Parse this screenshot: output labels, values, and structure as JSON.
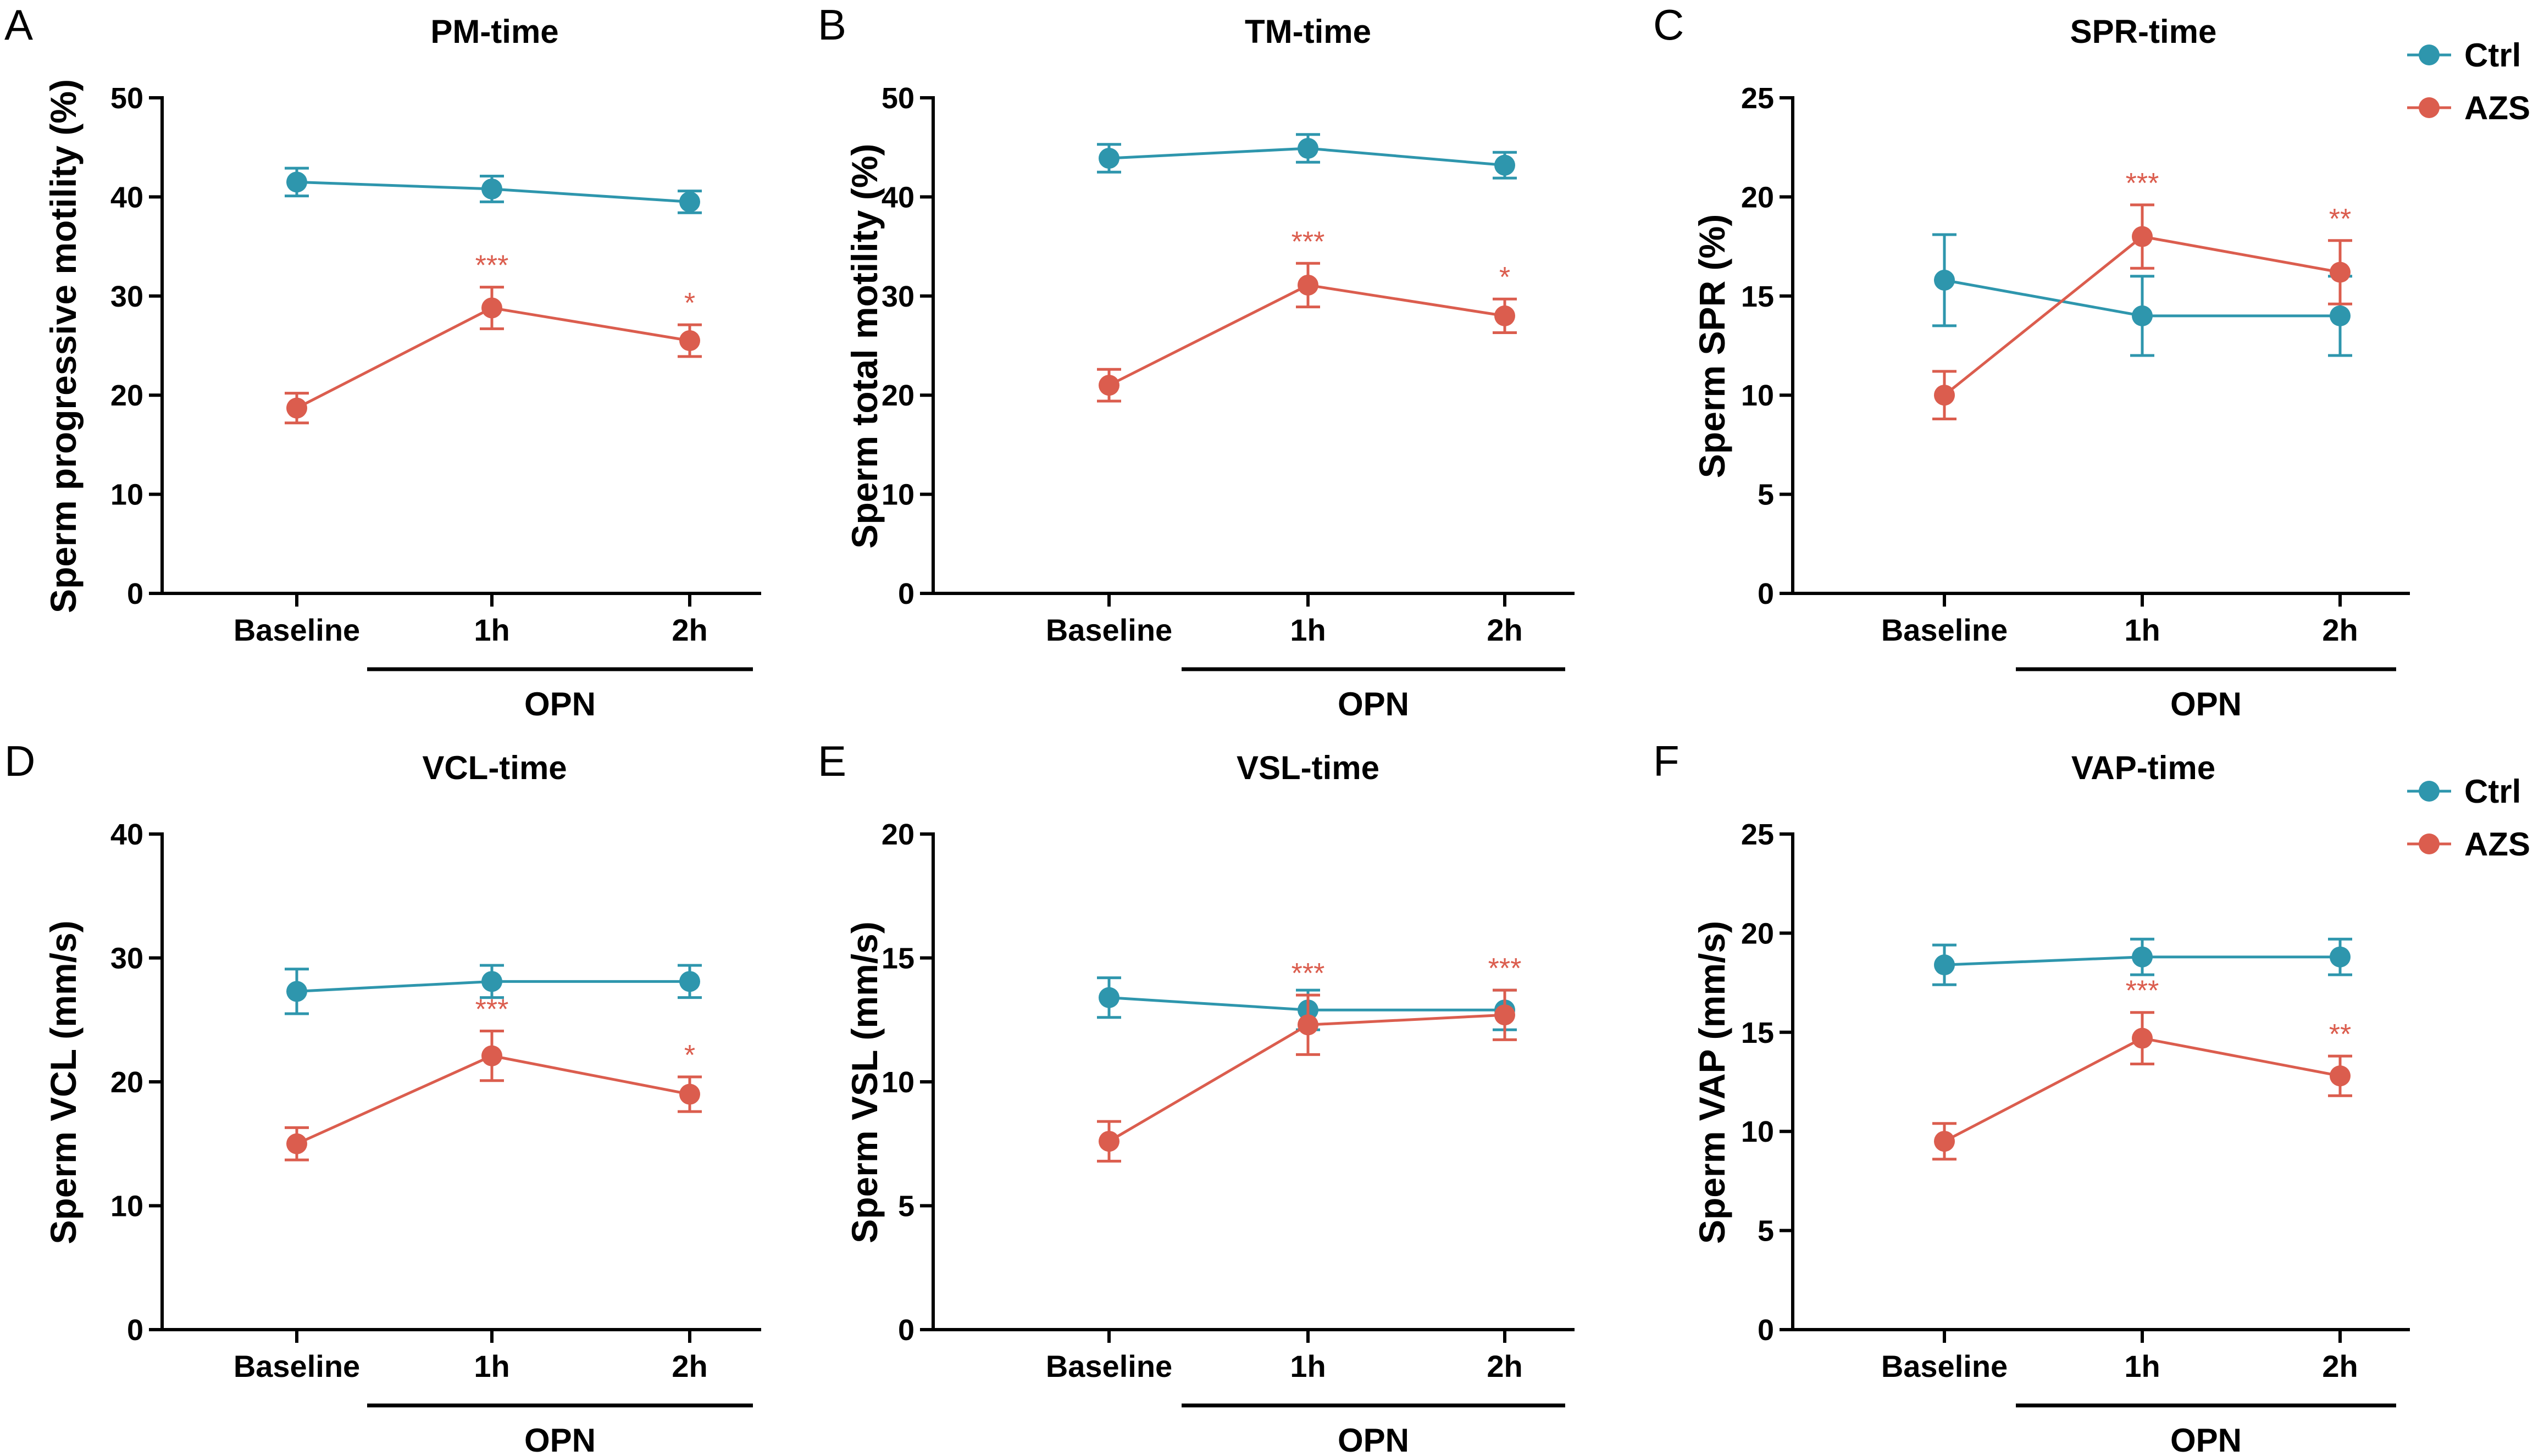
{
  "colors": {
    "ctrl": "#2e96ad",
    "azs": "#db5d4e",
    "axis": "#000000"
  },
  "legend": {
    "items": [
      {
        "key": "ctrl",
        "label": "Ctrl"
      },
      {
        "key": "azs",
        "label": "AZS"
      }
    ]
  },
  "chart_data": [
    {
      "letter": "A",
      "type": "line",
      "title": "PM-time",
      "ylabel": "Sperm progressive motility (%)",
      "ylim": [
        0,
        50
      ],
      "yticks": [
        0,
        10,
        20,
        30,
        40,
        50
      ],
      "categories": [
        "Baseline",
        "1h",
        "2h"
      ],
      "group_label": "OPN",
      "series": [
        {
          "name": "Ctrl",
          "values": [
            41.5,
            40.8,
            39.5
          ],
          "errors": [
            1.4,
            1.3,
            1.1
          ],
          "sig": [
            "",
            "",
            ""
          ]
        },
        {
          "name": "AZS",
          "values": [
            18.7,
            28.8,
            25.5
          ],
          "errors": [
            1.5,
            2.1,
            1.6
          ],
          "sig": [
            "",
            "***",
            "*"
          ]
        }
      ]
    },
    {
      "letter": "B",
      "type": "line",
      "title": "TM-time",
      "ylabel": "Sperm total motility (%)",
      "ylim": [
        0,
        50
      ],
      "yticks": [
        0,
        10,
        20,
        30,
        40,
        50
      ],
      "categories": [
        "Baseline",
        "1h",
        "2h"
      ],
      "group_label": "OPN",
      "series": [
        {
          "name": "Ctrl",
          "values": [
            43.9,
            44.9,
            43.2
          ],
          "errors": [
            1.4,
            1.4,
            1.3
          ],
          "sig": [
            "",
            "",
            ""
          ]
        },
        {
          "name": "AZS",
          "values": [
            21.0,
            31.1,
            28.0
          ],
          "errors": [
            1.6,
            2.2,
            1.7
          ],
          "sig": [
            "",
            "***",
            "*"
          ]
        }
      ]
    },
    {
      "letter": "C",
      "type": "line",
      "title": "SPR-time",
      "ylabel": "Sperm SPR (%)",
      "ylim": [
        0,
        25
      ],
      "yticks": [
        0,
        5,
        10,
        15,
        20,
        25
      ],
      "categories": [
        "Baseline",
        "1h",
        "2h"
      ],
      "group_label": "OPN",
      "show_legend": true,
      "series": [
        {
          "name": "Ctrl",
          "values": [
            15.8,
            14.0,
            14.0
          ],
          "errors": [
            2.3,
            2.0,
            2.0
          ],
          "sig": [
            "",
            "",
            ""
          ]
        },
        {
          "name": "AZS",
          "values": [
            10.0,
            18.0,
            16.2
          ],
          "errors": [
            1.2,
            1.6,
            1.6
          ],
          "sig": [
            "",
            "***",
            "**"
          ]
        }
      ]
    },
    {
      "letter": "D",
      "type": "line",
      "title": "VCL-time",
      "ylabel": "Sperm VCL  (mm/s)",
      "ylim": [
        0,
        40
      ],
      "yticks": [
        0,
        10,
        20,
        30,
        40
      ],
      "categories": [
        "Baseline",
        "1h",
        "2h"
      ],
      "group_label": "OPN",
      "series": [
        {
          "name": "Ctrl",
          "values": [
            27.3,
            28.1,
            28.1
          ],
          "errors": [
            1.8,
            1.3,
            1.3
          ],
          "sig": [
            "",
            "",
            ""
          ]
        },
        {
          "name": "AZS",
          "values": [
            15.0,
            22.1,
            19.0
          ],
          "errors": [
            1.3,
            2.0,
            1.4
          ],
          "sig": [
            "",
            "***",
            "*"
          ]
        }
      ]
    },
    {
      "letter": "E",
      "type": "line",
      "title": "VSL-time",
      "ylabel": "Sperm VSL  (mm/s)",
      "ylim": [
        0,
        20
      ],
      "yticks": [
        0,
        5,
        10,
        15,
        20
      ],
      "categories": [
        "Baseline",
        "1h",
        "2h"
      ],
      "group_label": "OPN",
      "series": [
        {
          "name": "Ctrl",
          "values": [
            13.4,
            12.9,
            12.9
          ],
          "errors": [
            0.8,
            0.8,
            0.8
          ],
          "sig": [
            "",
            "",
            ""
          ]
        },
        {
          "name": "AZS",
          "values": [
            7.6,
            12.3,
            12.7
          ],
          "errors": [
            0.8,
            1.2,
            1.0
          ],
          "sig": [
            "",
            "***",
            "***"
          ]
        }
      ]
    },
    {
      "letter": "F",
      "type": "line",
      "title": "VAP-time",
      "ylabel": "Sperm VAP  (mm/s)",
      "ylim": [
        0,
        25
      ],
      "yticks": [
        0,
        5,
        10,
        15,
        20,
        25
      ],
      "categories": [
        "Baseline",
        "1h",
        "2h"
      ],
      "group_label": "OPN",
      "show_legend": true,
      "series": [
        {
          "name": "Ctrl",
          "values": [
            18.4,
            18.8,
            18.8
          ],
          "errors": [
            1.0,
            0.9,
            0.9
          ],
          "sig": [
            "",
            "",
            ""
          ]
        },
        {
          "name": "AZS",
          "values": [
            9.5,
            14.7,
            12.8
          ],
          "errors": [
            0.9,
            1.3,
            1.0
          ],
          "sig": [
            "",
            "***",
            "**"
          ]
        }
      ]
    }
  ]
}
